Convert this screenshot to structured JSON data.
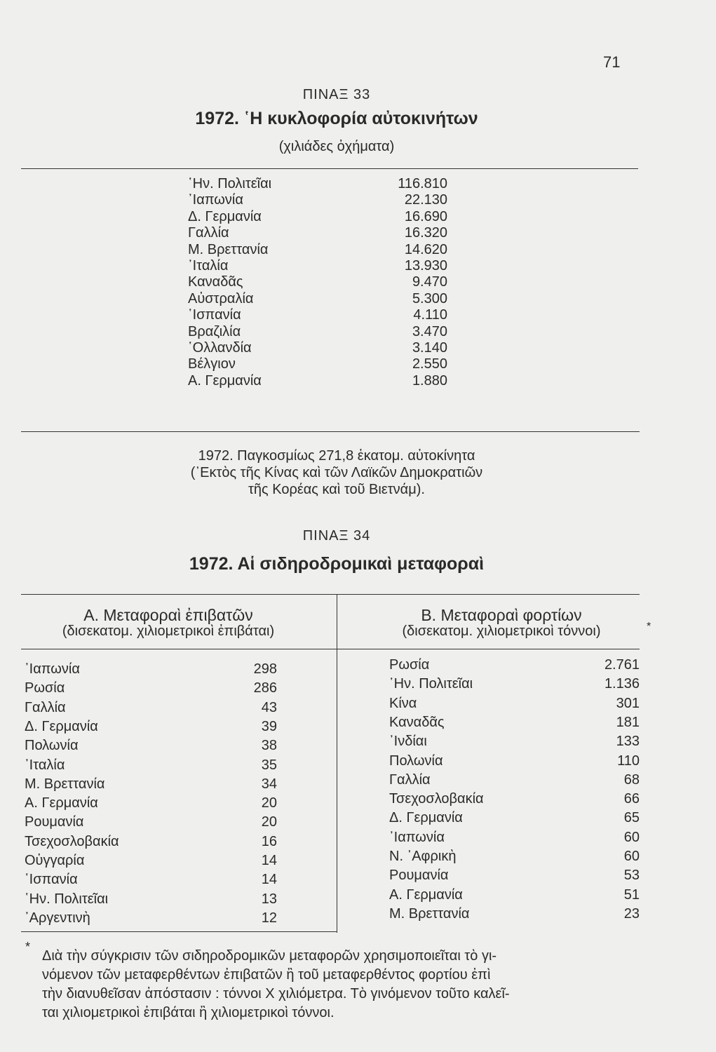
{
  "page_number": "71",
  "table33": {
    "label": "ΠΙΝΑΞ 33",
    "title": "1972. ῾Η κυκλοφορία αὐτοκινήτων",
    "subtitle": "(χιλιάδες ὀχήματα)",
    "rows": [
      {
        "country": "῾Ην. Πολιτεῖαι",
        "value": "116.810"
      },
      {
        "country": "᾿Ιαπωνία",
        "value": "22.130"
      },
      {
        "country": "Δ. Γερμανία",
        "value": "16.690"
      },
      {
        "country": "Γαλλία",
        "value": "16.320"
      },
      {
        "country": "Μ. Βρεττανία",
        "value": "14.620"
      },
      {
        "country": "᾿Ιταλία",
        "value": "13.930"
      },
      {
        "country": "Καναδᾶς",
        "value": "9.470"
      },
      {
        "country": "Αὐστραλία",
        "value": "5.300"
      },
      {
        "country": "῾Ισπανία",
        "value": "4.110"
      },
      {
        "country": "Βραζιλία",
        "value": "3.470"
      },
      {
        "country": "῾Ολλανδία",
        "value": "3.140"
      },
      {
        "country": "Βέλγιον",
        "value": "2.550"
      },
      {
        "country": "Α. Γερμανία",
        "value": "1.880"
      }
    ],
    "note": [
      "1972. Παγκοσμίως 271,8 ἑκατομ. αὐτοκίνητα",
      "(᾿Εκτὸς τῆς Κίνας καὶ τῶν Λαϊκῶν Δημοκρατιῶν",
      "τῆς Κορέας καὶ τοῦ Βιετνάμ)."
    ]
  },
  "table34": {
    "label": "ΠΙΝΑΞ 34",
    "title": "1972. Αἱ σιδηροδρομικαὶ μεταφοραὶ",
    "left": {
      "header": "Α. Μεταφοραὶ ἐπιβατῶν",
      "subheader": "(δισεκατομ. χιλιομετρικοὶ ἐπιβάται)",
      "rows": [
        {
          "country": "᾿Ιαπωνία",
          "value": "298"
        },
        {
          "country": "Ρωσία",
          "value": "286"
        },
        {
          "country": "Γαλλία",
          "value": "43"
        },
        {
          "country": "Δ. Γερμανία",
          "value": "39"
        },
        {
          "country": "Πολωνία",
          "value": "38"
        },
        {
          "country": "᾿Ιταλία",
          "value": "35"
        },
        {
          "country": "Μ. Βρεττανία",
          "value": "34"
        },
        {
          "country": "Α. Γερμανία",
          "value": "20"
        },
        {
          "country": "Ρουμανία",
          "value": "20"
        },
        {
          "country": "Τσεχοσλοβακία",
          "value": "16"
        },
        {
          "country": "Οὑγγαρία",
          "value": "14"
        },
        {
          "country": "῾Ισπανία",
          "value": "14"
        },
        {
          "country": "῾Ην. Πολιτεῖαι",
          "value": "13"
        },
        {
          "country": "᾿Αργεντινὴ",
          "value": "12"
        }
      ]
    },
    "right": {
      "header": "Β. Μεταφοραὶ φορτίων",
      "subheader": "(δισεκατομ. χιλιομετρικοὶ τόννοι)",
      "asterisk": "*",
      "rows": [
        {
          "country": "Ρωσία",
          "value": "2.761"
        },
        {
          "country": "῾Ην. Πολιτεῖαι",
          "value": "1.136"
        },
        {
          "country": "Κίνα",
          "value": "301"
        },
        {
          "country": "Καναδᾶς",
          "value": "181"
        },
        {
          "country": "᾿Ινδίαι",
          "value": "133"
        },
        {
          "country": "Πολωνία",
          "value": "110"
        },
        {
          "country": "Γαλλία",
          "value": "68"
        },
        {
          "country": "Τσεχοσλοβακία",
          "value": "66"
        },
        {
          "country": "Δ. Γερμανία",
          "value": "65"
        },
        {
          "country": "᾿Ιαπωνία",
          "value": "60"
        },
        {
          "country": "Ν. ᾿Αφρικὴ",
          "value": "60"
        },
        {
          "country": "Ρουμανία",
          "value": "53"
        },
        {
          "country": "Α. Γερμανία",
          "value": "51"
        },
        {
          "country": "Μ. Βρεττανία",
          "value": "23"
        }
      ]
    }
  },
  "footnote": {
    "marker": "*",
    "lines": [
      "Διὰ τὴν σύγκρισιν τῶν σιδηροδρομικῶν μεταφορῶν χρησιμοποιεῖται τὸ γι-",
      "νόμενον τῶν μεταφερθέντων ἐπιβατῶν ἢ τοῦ μεταφερθέντος φορτίου ἐπὶ",
      "τὴν διανυθεῖσαν ἀπόστασιν : τόννοι Χ χιλιόμετρα. Τὸ γινόμενον τοῦτο καλεῖ-",
      "ται χιλιομετρικοὶ ἐπιβάται ἢ χιλιομετρικοὶ τόννοι."
    ]
  }
}
